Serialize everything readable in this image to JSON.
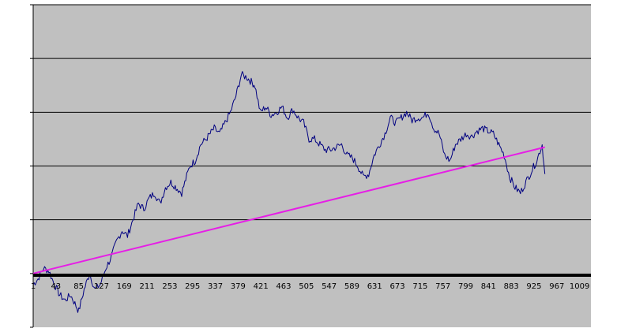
{
  "chart_data": {
    "type": "line",
    "title": "",
    "xlabel": "",
    "ylabel": "",
    "x_tick_labels": [
      "1",
      "43",
      "85",
      "127",
      "169",
      "211",
      "253",
      "295",
      "337",
      "379",
      "421",
      "463",
      "505",
      "547",
      "589",
      "631",
      "673",
      "715",
      "757",
      "799",
      "841",
      "883",
      "925",
      "967",
      "1009"
    ],
    "xlim": [
      1,
      1030
    ],
    "ylim": [
      -1,
      5
    ],
    "y_gridlines": [
      0,
      1,
      2,
      3,
      4,
      5
    ],
    "y_tick_labels_shown": false,
    "grid": true,
    "legend": "none",
    "plot_background": "#c0c0c0",
    "series": [
      {
        "color": "#000080",
        "style": "noisy-line",
        "x": [
          1,
          10,
          20,
          30,
          40,
          50,
          60,
          70,
          80,
          85,
          95,
          105,
          115,
          125,
          135,
          145,
          155,
          165,
          175,
          185,
          195,
          205,
          215,
          225,
          235,
          245,
          255,
          265,
          275,
          290,
          300,
          310,
          320,
          335,
          345,
          355,
          365,
          375,
          385,
          395,
          400,
          405,
          410,
          420,
          430,
          440,
          450,
          460,
          470,
          480,
          490,
          500,
          510,
          520,
          530,
          540,
          550,
          560,
          570,
          580,
          590,
          600,
          610,
          620,
          630,
          640,
          650,
          660,
          670,
          680,
          690,
          700,
          710,
          720,
          730,
          740,
          750,
          760,
          770,
          780,
          790,
          800,
          810,
          820,
          830,
          840,
          850,
          860,
          870,
          880,
          890,
          900,
          910,
          920,
          930,
          940,
          945
        ],
        "y": [
          -0.2,
          -0.1,
          0.1,
          0.05,
          -0.2,
          -0.4,
          -0.5,
          -0.4,
          -0.6,
          -0.7,
          -0.3,
          0.0,
          -0.3,
          -0.2,
          0.1,
          0.3,
          0.6,
          0.8,
          0.7,
          1.0,
          1.3,
          1.2,
          1.4,
          1.5,
          1.3,
          1.6,
          1.7,
          1.6,
          1.5,
          2.0,
          2.1,
          2.4,
          2.5,
          2.7,
          2.6,
          2.8,
          3.0,
          3.3,
          3.7,
          3.65,
          3.6,
          3.55,
          3.5,
          3.0,
          3.1,
          2.95,
          3.0,
          3.1,
          2.9,
          3.05,
          2.9,
          2.8,
          2.5,
          2.5,
          2.4,
          2.3,
          2.3,
          2.35,
          2.4,
          2.2,
          2.15,
          2.0,
          1.8,
          1.85,
          2.2,
          2.4,
          2.6,
          2.9,
          2.8,
          2.9,
          3.0,
          2.85,
          2.9,
          2.9,
          3.0,
          2.7,
          2.6,
          2.2,
          2.1,
          2.4,
          2.5,
          2.6,
          2.55,
          2.65,
          2.7,
          2.65,
          2.6,
          2.4,
          2.2,
          1.8,
          1.6,
          1.5,
          1.7,
          1.9,
          2.1,
          2.4,
          1.85
        ]
      },
      {
        "color": "#e61ee6",
        "style": "smooth-line",
        "x": [
          1,
          945
        ],
        "y": [
          0.0,
          2.35
        ]
      }
    ]
  }
}
